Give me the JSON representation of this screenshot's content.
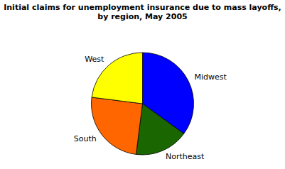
{
  "chart_data": {
    "type": "pie",
    "title": "Initial claims for unemployment insurance due to mass layoffs,\nby region, May 2005",
    "categories": [
      "Midwest",
      "Northeast",
      "South",
      "West"
    ],
    "values": [
      35,
      17,
      25,
      23
    ],
    "colors": [
      "#0000FF",
      "#1a6600",
      "#FF6600",
      "#FFFF00"
    ]
  }
}
